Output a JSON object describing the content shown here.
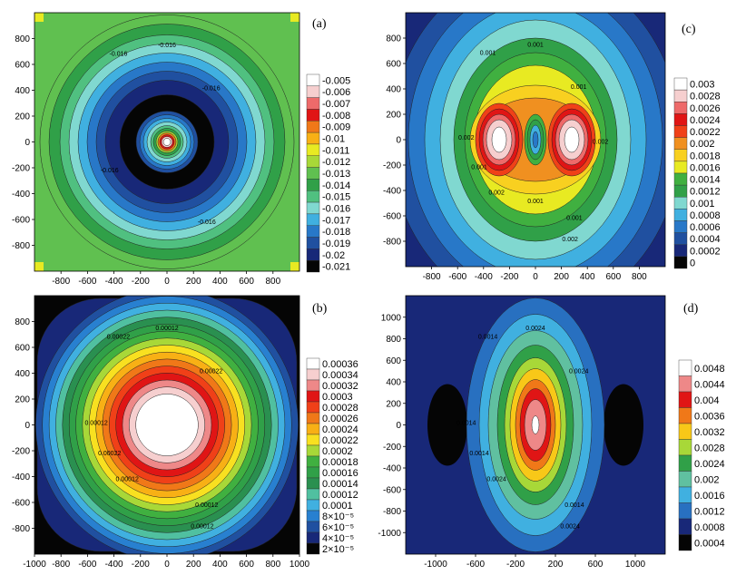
{
  "chart_data": [
    {
      "type": "heatmap",
      "panel": "(a)",
      "title": "",
      "xlabel": "",
      "ylabel": "",
      "xlim": [
        -1000,
        1000
      ],
      "ylim": [
        -1000,
        1000
      ],
      "x_ticks": [
        "-800",
        "-600",
        "-400",
        "-200",
        "0",
        "200",
        "400",
        "600",
        "800"
      ],
      "y_ticks": [
        "800",
        "600",
        "400",
        "200",
        "0",
        "-200",
        "-400",
        "-600",
        "-800"
      ],
      "colorbar": [
        "-0.005",
        "-0.006",
        "-0.007",
        "-0.008",
        "-0.009",
        "-0.01",
        "-0.011",
        "-0.012",
        "-0.013",
        "-0.014",
        "-0.015",
        "-0.016",
        "-0.017",
        "-0.018",
        "-0.019",
        "-0.02",
        "-0.021"
      ],
      "colors": [
        "#ffffff",
        "#f6cfcf",
        "#ee6a6a",
        "#e01515",
        "#f07818",
        "#f8b015",
        "#e8ea22",
        "#a8d838",
        "#60c050",
        "#30a048",
        "#50c080",
        "#80d8d0",
        "#40b0e0",
        "#2878c8",
        "#2050a0",
        "#182878",
        "#050505"
      ],
      "contour_labels": [
        "-0.016",
        "-0.016",
        "-0.016",
        "-0.016",
        "-0.016"
      ]
    },
    {
      "type": "heatmap",
      "panel": "(b)",
      "title": "",
      "xlabel": "",
      "ylabel": "",
      "xlim": [
        -1000,
        1000
      ],
      "ylim": [
        -1000,
        1000
      ],
      "x_ticks": [
        "-1000",
        "-800",
        "-600",
        "-400",
        "-200",
        "0",
        "200",
        "400",
        "600",
        "800",
        "1000"
      ],
      "y_ticks": [
        "800",
        "600",
        "400",
        "200",
        "0",
        "-200",
        "-400",
        "-600",
        "-800"
      ],
      "colorbar": [
        "0.00036",
        "0.00034",
        "0.00032",
        "0.0003",
        "0.00028",
        "0.00026",
        "0.00024",
        "0.00022",
        "0.0002",
        "0.00018",
        "0.00016",
        "0.00014",
        "0.00012",
        "0.0001",
        "8×10⁻⁵",
        "6×10⁻⁵",
        "4×10⁻⁵",
        "2×10⁻⁵"
      ],
      "colors": [
        "#ffffff",
        "#f6cfcf",
        "#ee8888",
        "#e01515",
        "#f04018",
        "#f07818",
        "#f8b015",
        "#f8e020",
        "#a8d838",
        "#40b040",
        "#30a048",
        "#2a9050",
        "#50c0a0",
        "#40b0e0",
        "#2880d0",
        "#2050a0",
        "#182878",
        "#050505"
      ],
      "contour_labels": [
        "0.00022",
        "0.00022",
        "0.00022",
        "0.00012",
        "0.00012",
        "0.00012",
        "0.00012",
        "0.00012"
      ]
    },
    {
      "type": "heatmap",
      "panel": "(c)",
      "title": "",
      "xlabel": "",
      "ylabel": "",
      "xlim": [
        -1000,
        1000
      ],
      "ylim": [
        -1000,
        1000
      ],
      "x_ticks": [
        "-800",
        "-600",
        "-400",
        "-200",
        "0",
        "200",
        "400",
        "600",
        "800"
      ],
      "y_ticks": [
        "800",
        "600",
        "400",
        "200",
        "0",
        "-200",
        "-400",
        "-600",
        "-800"
      ],
      "colorbar": [
        "0.003",
        "0.0028",
        "0.0026",
        "0.0024",
        "0.0022",
        "0.002",
        "0.0018",
        "0.0016",
        "0.0014",
        "0.0012",
        "0.001",
        "0.0008",
        "0.0006",
        "0.0004",
        "0.0002",
        "0"
      ],
      "colors": [
        "#ffffff",
        "#f6cfcf",
        "#ee6a6a",
        "#e01515",
        "#f04018",
        "#f09020",
        "#f8d020",
        "#e8ea22",
        "#40b040",
        "#30a048",
        "#80d8d0",
        "#40b0e0",
        "#2878c8",
        "#2050a0",
        "#182878",
        "#050505"
      ],
      "contour_labels": [
        "0.001",
        "0.001",
        "0.001",
        "0.001",
        "0.001",
        "0.002",
        "0.002",
        "0.002",
        "0.002",
        "0.001"
      ]
    },
    {
      "type": "heatmap",
      "panel": "(d)",
      "title": "",
      "xlabel": "",
      "ylabel": "",
      "xlim": [
        -1300,
        1300
      ],
      "ylim": [
        -1200,
        1200
      ],
      "x_ticks": [
        "-1000",
        "-600",
        "-200",
        "200",
        "600",
        "1000"
      ],
      "y_ticks": [
        "1000",
        "800",
        "600",
        "400",
        "200",
        "0",
        "-200",
        "-400",
        "-600",
        "-800",
        "-1000"
      ],
      "colorbar": [
        "0.0048",
        "0.0044",
        "0.004",
        "0.0036",
        "0.0032",
        "0.0028",
        "0.0024",
        "0.002",
        "0.0016",
        "0.0012",
        "0.0008",
        "0.0004"
      ],
      "colors": [
        "#ffffff",
        "#ee8888",
        "#e01515",
        "#f07818",
        "#f8c818",
        "#a8d838",
        "#30a048",
        "#60c0a0",
        "#40b0e0",
        "#2870c0",
        "#182878",
        "#050505"
      ],
      "contour_labels": [
        "0.0014",
        "0.0024",
        "0.0014",
        "0.0014",
        "0.0024",
        "0.0024",
        "0.0024",
        "0.0014"
      ]
    }
  ]
}
